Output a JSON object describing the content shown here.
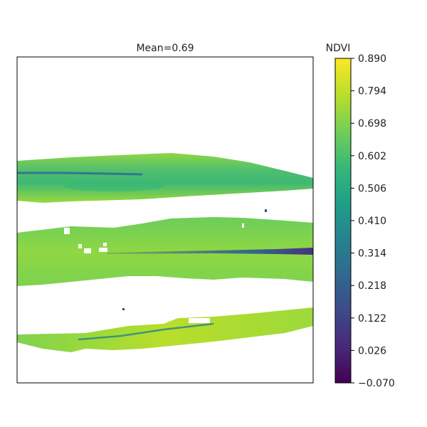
{
  "chart_data": {
    "type": "heatmap",
    "title": "Mean=0.69",
    "colorbar": {
      "label": "NDVI",
      "colormap": "viridis",
      "range": [
        -0.07,
        0.89
      ],
      "ticks": [
        0.89,
        0.794,
        0.698,
        0.602,
        0.506,
        0.41,
        0.314,
        0.218,
        0.122,
        0.026,
        -0.07
      ],
      "tick_labels": [
        "0.890",
        "0.794",
        "0.698",
        "0.602",
        "0.506",
        "0.410",
        "0.314",
        "0.218",
        "0.122",
        "0.026",
        "−0.070"
      ],
      "colors": [
        "#fde725",
        "#b5de2b",
        "#6ece58",
        "#35b779",
        "#1f9e89",
        "#26828e",
        "#31688e",
        "#3e4989",
        "#482878",
        "#440154"
      ]
    },
    "mean": 0.69,
    "axes_ticks_visible": false,
    "grid": false,
    "field_strips": [
      {
        "typical_ndvi": 0.66,
        "low_streak_ndvi": 0.25
      },
      {
        "typical_ndvi": 0.72,
        "low_streak_ndvi": 0.05
      },
      {
        "typical_ndvi": 0.76,
        "low_streak_ndvi": 0.4
      }
    ]
  }
}
